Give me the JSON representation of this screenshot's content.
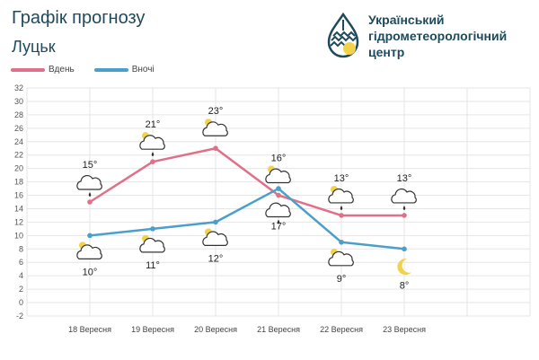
{
  "header": {
    "title": "Графік прогнозу",
    "city": "Луцьк",
    "org_line1": "Український",
    "org_line2": "гідрометеорологічний",
    "org_line3": "центр"
  },
  "colors": {
    "day": "#e0708a",
    "night": "#4a9fcb",
    "grid": "#e6e6e6",
    "sun": "#f2d24a"
  },
  "chart_data": {
    "type": "line",
    "categories": [
      "18 Вересня",
      "19 Вересня",
      "20 Вересня",
      "21 Вересня",
      "22 Вересня",
      "23 Вересня"
    ],
    "series": [
      {
        "name": "Вдень",
        "values": [
          15,
          21,
          23,
          16,
          13,
          13
        ],
        "labels": [
          "15°",
          "21°",
          "23°",
          "16°",
          "13°",
          "13°"
        ],
        "icons": [
          "cloud-rain-icon",
          "sun-cloud-rain-icon",
          "sun-cloud-icon",
          "sun-cloud-icon",
          "sun-cloud-rain-icon",
          "cloud-rain-icon"
        ]
      },
      {
        "name": "Вночі",
        "values": [
          10,
          11,
          12,
          17,
          9,
          8
        ],
        "labels": [
          "10°",
          "11°",
          "12°",
          "17°",
          "9°",
          "8°"
        ],
        "icons": [
          "moon-cloud-icon",
          "moon-cloud-icon",
          "moon-cloud-icon",
          "cloud-rain-icon",
          "moon-cloud-icon",
          "moon-icon"
        ]
      }
    ],
    "yticks": [
      "32",
      "30",
      "28",
      "26",
      "24",
      "22",
      "20",
      "18",
      "16",
      "14",
      "12",
      "10",
      "8",
      "6",
      "4",
      "2",
      "0",
      "-2"
    ],
    "ylim": [
      -2,
      32
    ],
    "grid": true,
    "legend": "top-left"
  }
}
